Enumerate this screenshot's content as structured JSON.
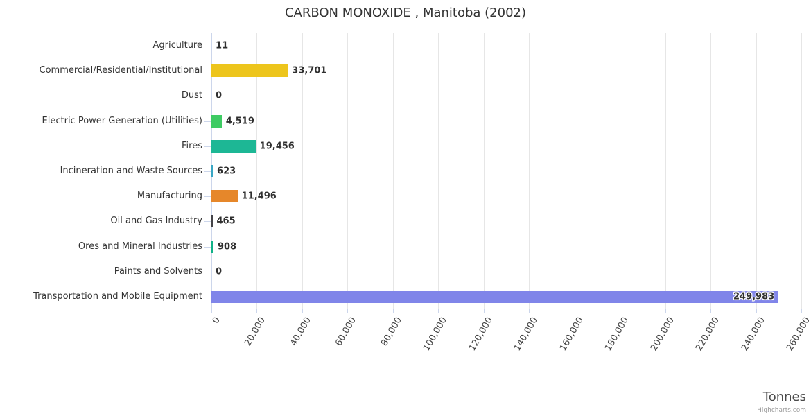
{
  "title": "CARBON MONOXIDE , Manitoba (2002)",
  "credit": "Highcharts.com",
  "chart_data": {
    "type": "bar",
    "orientation": "horizontal",
    "title": "CARBON MONOXIDE , Manitoba (2002)",
    "xlabel": "Tonnes",
    "ylabel": "",
    "categories": [
      "Agriculture",
      "Commercial/Residential/Institutional",
      "Dust",
      "Electric Power Generation (Utilities)",
      "Fires",
      "Incineration and Waste Sources",
      "Manufacturing",
      "Oil and Gas Industry",
      "Ores and Mineral Industries",
      "Paints and Solvents",
      "Transportation and Mobile Equipment"
    ],
    "values": [
      11,
      33701,
      0,
      4519,
      19456,
      623,
      11496,
      465,
      908,
      0,
      249983
    ],
    "value_labels": [
      "11",
      "33,701",
      "0",
      "4,519",
      "19,456",
      "623",
      "11,496",
      "465",
      "908",
      "0",
      "249,983"
    ],
    "bar_colors": [
      "#7cb5ec",
      "#edc51c",
      "#cccccc",
      "#3ecb63",
      "#1db795",
      "#38a6c4",
      "#e6872a",
      "#434348",
      "#10b187",
      "#cccccc",
      "#8085e9"
    ],
    "xlim": [
      0,
      260000
    ],
    "xtick_step": 20000,
    "xtick_labels": [
      "0",
      "20,000",
      "40,000",
      "60,000",
      "80,000",
      "100,000",
      "120,000",
      "140,000",
      "160,000",
      "180,000",
      "200,000",
      "220,000",
      "240,000",
      "260,000"
    ],
    "grid": true,
    "legend": false,
    "grid_color": "#e6e6e6",
    "axis_color": "#ccd6eb"
  }
}
